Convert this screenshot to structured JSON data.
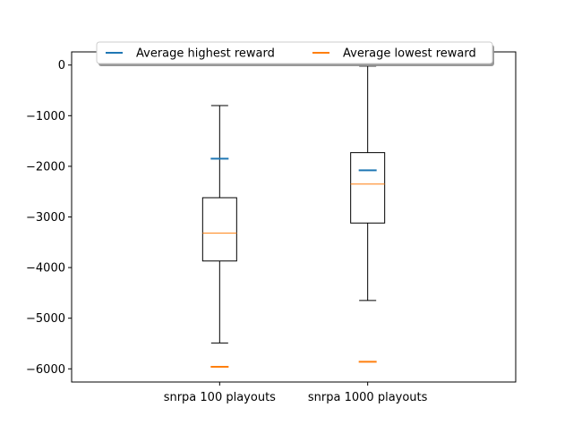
{
  "chart_data": {
    "type": "box",
    "categories": [
      "snrpa 100 playouts",
      "snrpa 1000 playouts"
    ],
    "boxes": [
      {
        "category": "snrpa 100 playouts",
        "whisker_low": -5490,
        "q1": -3870,
        "median": -3320,
        "q3": -2620,
        "whisker_high": -800
      },
      {
        "category": "snrpa 1000 playouts",
        "whisker_low": -4650,
        "q1": -3120,
        "median": -2350,
        "q3": -1730,
        "whisker_high": -20
      }
    ],
    "markers": [
      {
        "name": "Average highest reward",
        "color": "#1f77b4",
        "values": [
          -1850,
          -2080
        ]
      },
      {
        "name": "Average lowest reward",
        "color": "#ff7f0e",
        "values": [
          -5960,
          -5860
        ]
      }
    ],
    "ylim": [
      -6260,
      260
    ],
    "yticks": [
      0,
      -1000,
      -2000,
      -3000,
      -4000,
      -5000,
      -6000
    ],
    "ytick_labels": [
      "0",
      "−1000",
      "−2000",
      "−3000",
      "−4000",
      "−5000",
      "−6000"
    ],
    "legend": {
      "placement": "top-center",
      "columns": 2
    },
    "grid": false,
    "title": "",
    "xlabel": "",
    "ylabel": ""
  }
}
